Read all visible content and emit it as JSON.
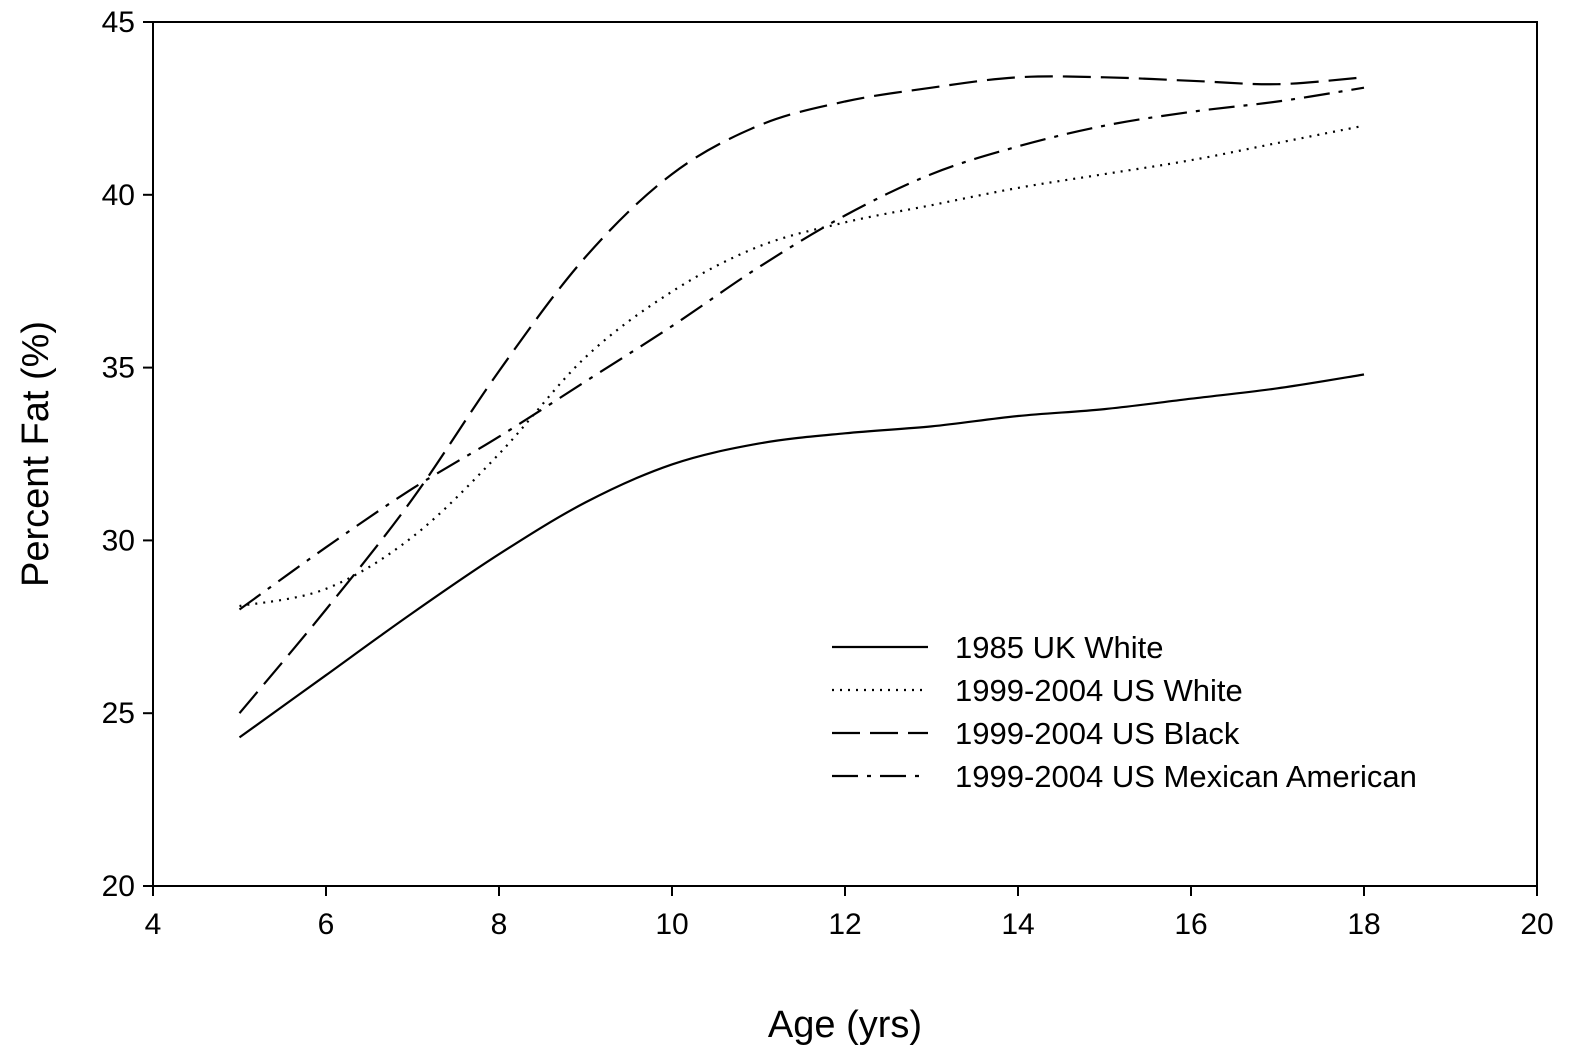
{
  "chart_data": {
    "type": "line",
    "xlabel": "Age (yrs)",
    "ylabel": "Percent Fat (%)",
    "xlim": [
      4,
      20
    ],
    "ylim": [
      20,
      45
    ],
    "xticks": [
      4,
      6,
      8,
      10,
      12,
      14,
      16,
      18,
      20
    ],
    "yticks": [
      20,
      25,
      30,
      35,
      40,
      45
    ],
    "grid": false,
    "legend_position": "lower-right",
    "series": [
      {
        "name": "1985 UK White",
        "style": "solid",
        "x": [
          5,
          6,
          7,
          8,
          9,
          10,
          11,
          12,
          13,
          14,
          15,
          16,
          17,
          18
        ],
        "y": [
          24.3,
          26.1,
          27.9,
          29.6,
          31.1,
          32.2,
          32.8,
          33.1,
          33.3,
          33.6,
          33.8,
          34.1,
          34.4,
          34.8
        ]
      },
      {
        "name": "1999-2004 US White",
        "style": "dotted",
        "x": [
          5,
          6,
          7,
          8,
          9,
          10,
          11,
          12,
          13,
          14,
          15,
          16,
          17,
          18
        ],
        "y": [
          28.1,
          28.6,
          30.1,
          32.5,
          35.3,
          37.2,
          38.5,
          39.2,
          39.7,
          40.2,
          40.6,
          41.0,
          41.5,
          42.0
        ]
      },
      {
        "name": "1999-2004 US Black",
        "style": "dashed",
        "x": [
          5,
          6,
          7,
          8,
          9,
          10,
          11,
          12,
          13,
          14,
          15,
          16,
          17,
          18
        ],
        "y": [
          25.0,
          28.0,
          31.2,
          34.9,
          38.2,
          40.6,
          42.0,
          42.7,
          43.1,
          43.4,
          43.4,
          43.3,
          43.2,
          43.4
        ]
      },
      {
        "name": "1999-2004 US Mexican American",
        "style": "dashdot",
        "x": [
          5,
          6,
          7,
          8,
          9,
          10,
          11,
          12,
          13,
          14,
          15,
          16,
          17,
          18
        ],
        "y": [
          28.0,
          29.8,
          31.5,
          33.0,
          34.6,
          36.2,
          37.9,
          39.4,
          40.6,
          41.4,
          42.0,
          42.4,
          42.7,
          43.1
        ]
      }
    ]
  }
}
